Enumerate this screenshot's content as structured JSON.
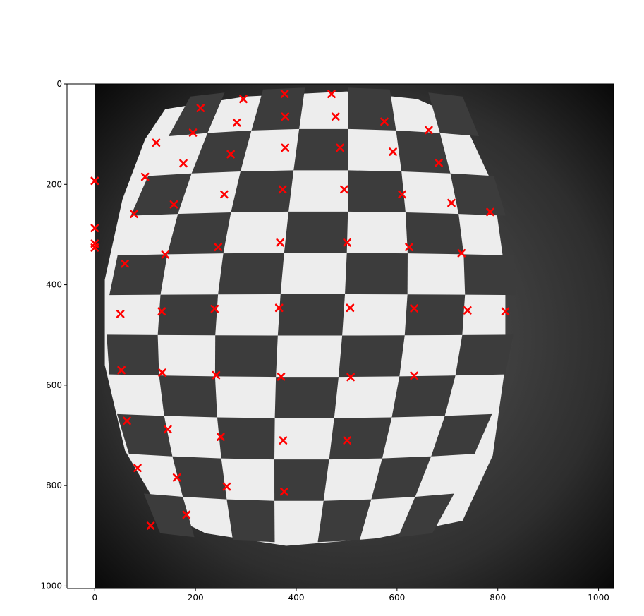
{
  "chart_data": {
    "type": "scatter",
    "title": "",
    "xlabel": "",
    "ylabel": "",
    "xlim": [
      -55,
      1030
    ],
    "ylim": [
      1005,
      0
    ],
    "x_ticks": [
      0,
      200,
      400,
      600,
      800,
      1000
    ],
    "y_ticks": [
      0,
      200,
      400,
      600,
      800,
      1000
    ],
    "grid": false,
    "image": {
      "description_name": "fisheye-checkerboard",
      "extent_x": [
        0,
        1030
      ],
      "extent_y": [
        0,
        1005
      ],
      "grid_rows": 11,
      "grid_cols": 7
    },
    "series": [
      {
        "marker": "x",
        "color": "#ff0000",
        "points": [
          [
            377,
            20
          ],
          [
            470,
            20
          ],
          [
            295,
            30
          ],
          [
            210,
            48
          ],
          [
            378,
            65
          ],
          [
            478,
            65
          ],
          [
            282,
            77
          ],
          [
            575,
            75
          ],
          [
            663,
            92
          ],
          [
            195,
            97
          ],
          [
            122,
            117
          ],
          [
            378,
            127
          ],
          [
            487,
            127
          ],
          [
            270,
            140
          ],
          [
            592,
            135
          ],
          [
            683,
            157
          ],
          [
            176,
            158
          ],
          [
            100,
            185
          ],
          [
            0,
            193
          ],
          [
            373,
            210
          ],
          [
            495,
            210
          ],
          [
            257,
            220
          ],
          [
            610,
            220
          ],
          [
            708,
            237
          ],
          [
            157,
            240
          ],
          [
            78,
            259
          ],
          [
            785,
            255
          ],
          [
            0,
            287
          ],
          [
            0,
            318
          ],
          [
            0,
            326
          ],
          [
            245,
            325
          ],
          [
            368,
            316
          ],
          [
            501,
            316
          ],
          [
            624,
            325
          ],
          [
            728,
            337
          ],
          [
            140,
            340
          ],
          [
            60,
            358
          ],
          [
            51,
            458
          ],
          [
            133,
            453
          ],
          [
            238,
            448
          ],
          [
            366,
            446
          ],
          [
            507,
            446
          ],
          [
            634,
            447
          ],
          [
            740,
            451
          ],
          [
            815,
            453
          ],
          [
            53,
            570
          ],
          [
            134,
            575
          ],
          [
            241,
            580
          ],
          [
            370,
            583
          ],
          [
            508,
            584
          ],
          [
            634,
            581
          ],
          [
            64,
            671
          ],
          [
            145,
            688
          ],
          [
            250,
            703
          ],
          [
            374,
            710
          ],
          [
            501,
            710
          ],
          [
            85,
            765
          ],
          [
            163,
            784
          ],
          [
            262,
            802
          ],
          [
            376,
            812
          ],
          [
            182,
            858
          ],
          [
            111,
            880
          ]
        ]
      }
    ]
  }
}
